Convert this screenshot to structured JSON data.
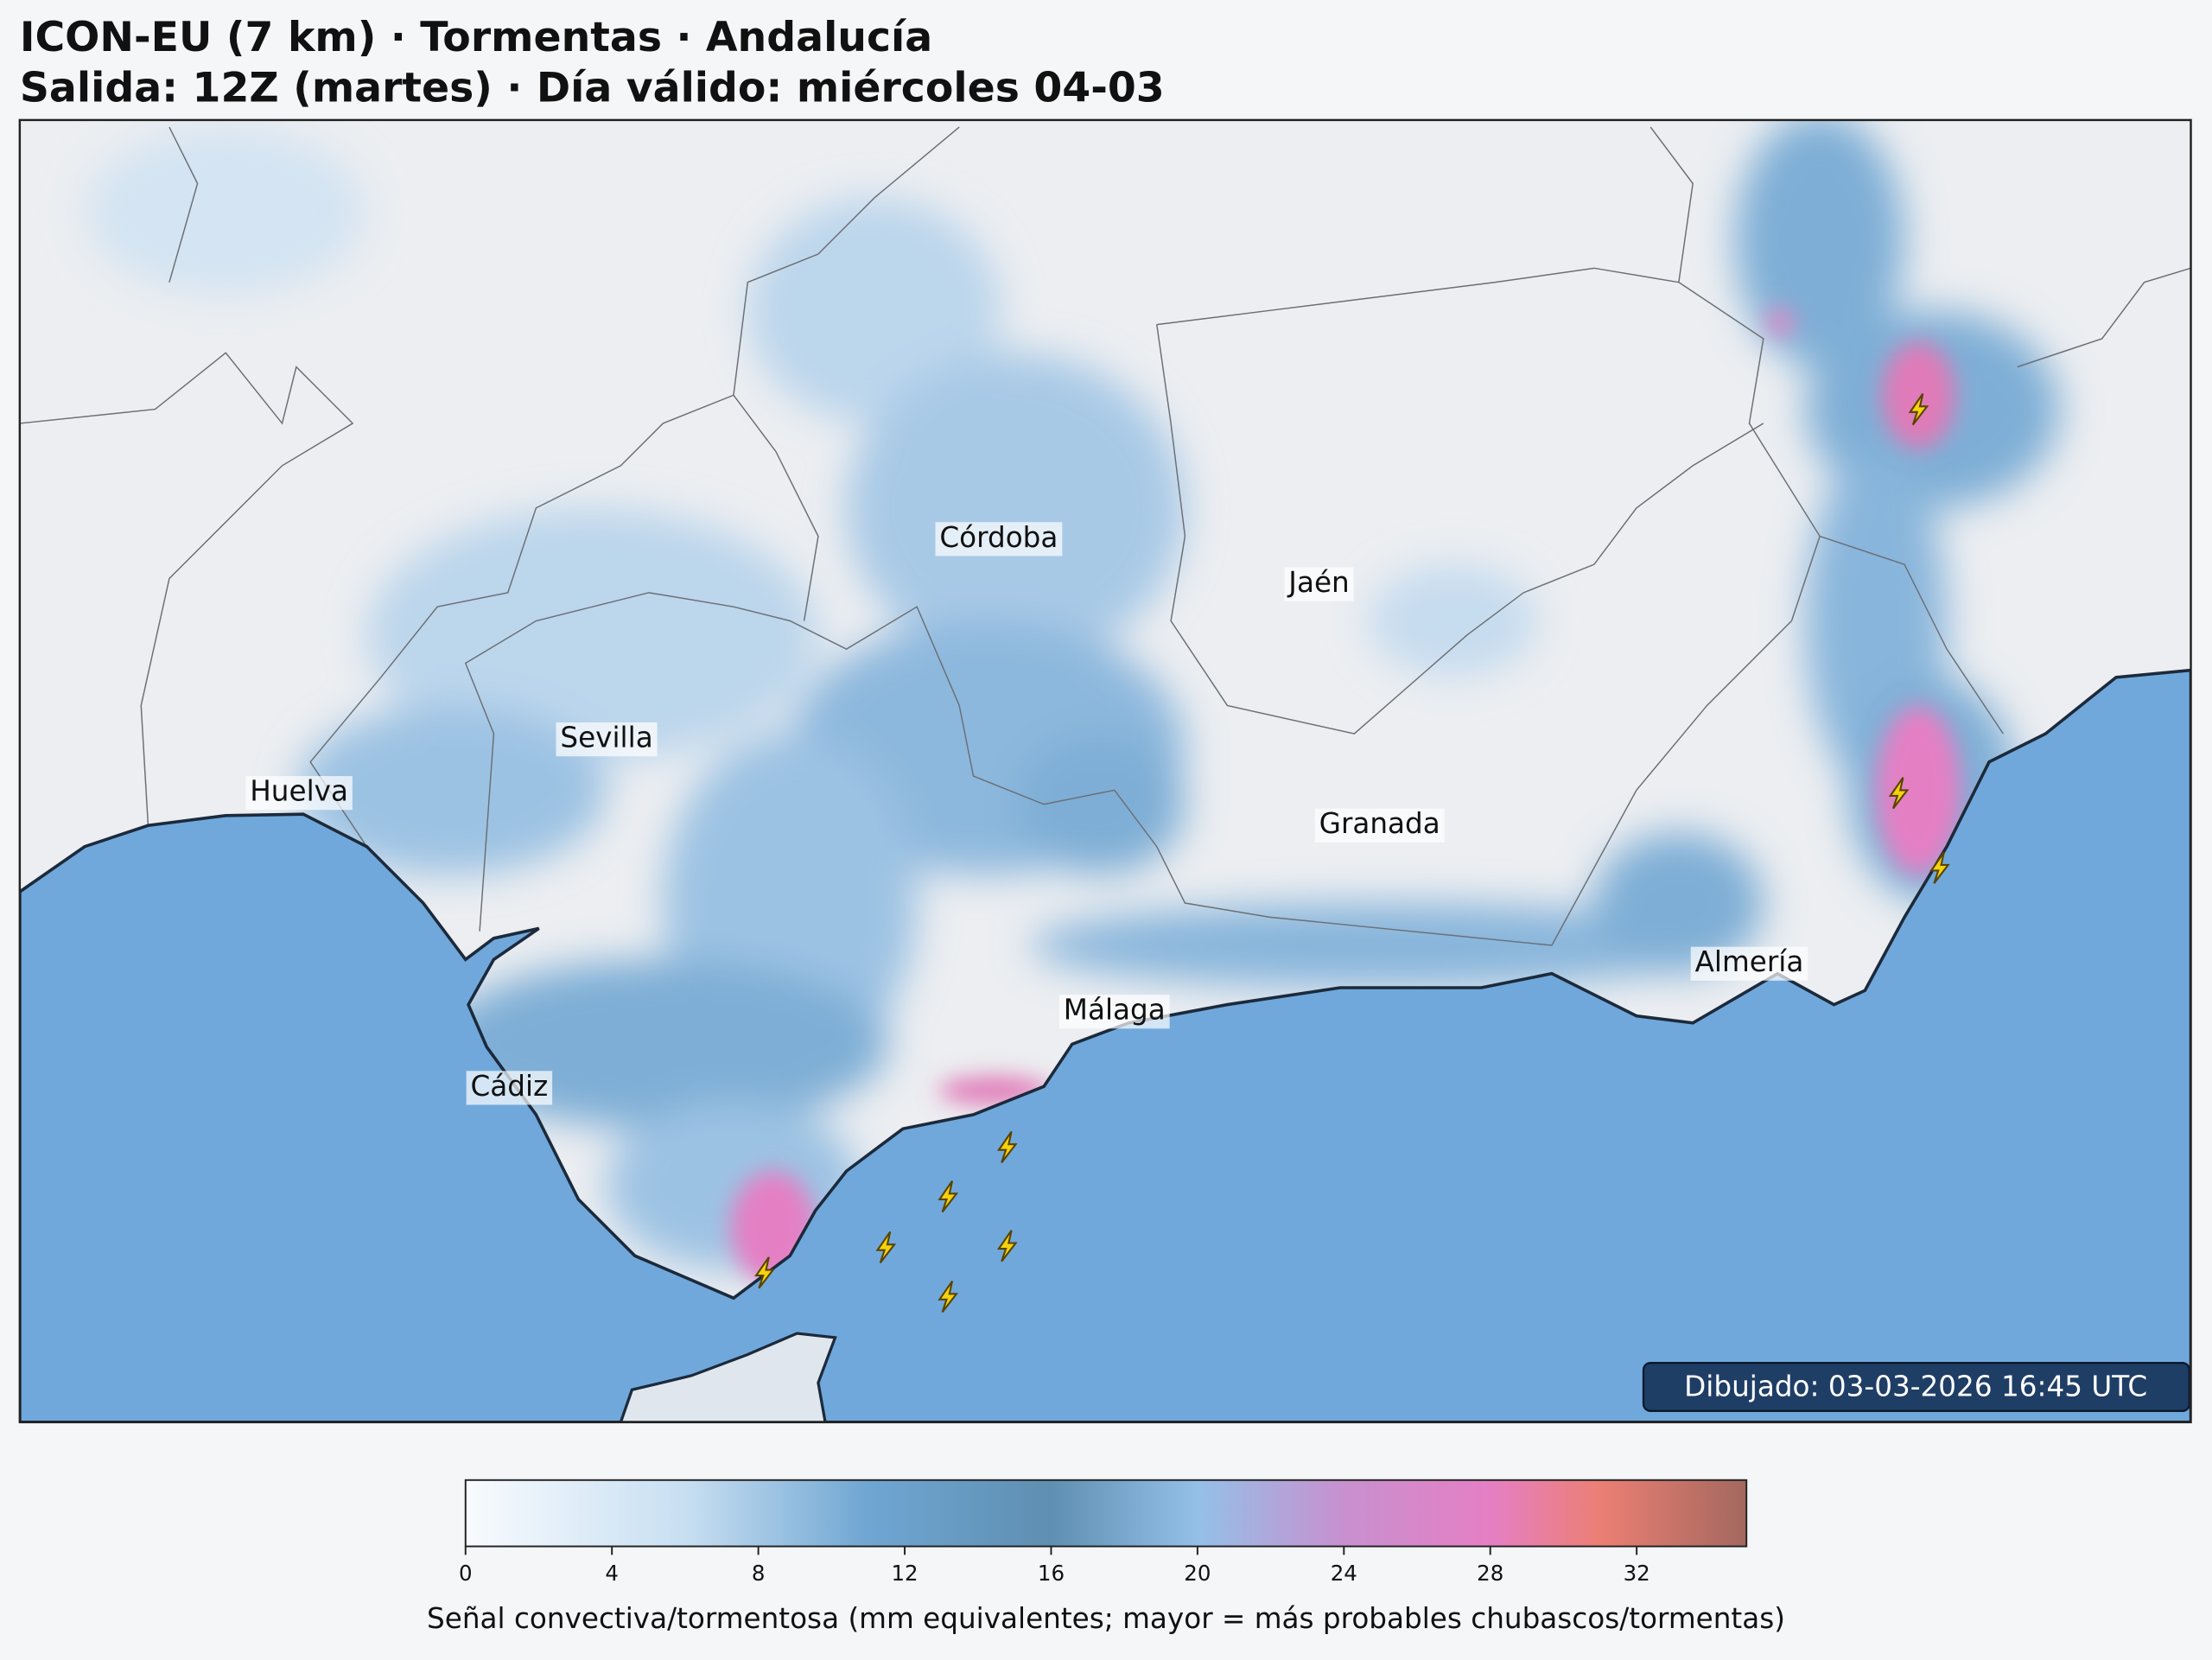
{
  "header": {
    "title_line1": "ICON-EU (7 km) · Tormentas · Andalucía",
    "title_line2": "Salida: 12Z (martes) · Día válido: miércoles 04-03"
  },
  "map": {
    "labels": [
      "Córdoba",
      "Jaén",
      "Sevilla",
      "Huelva",
      "Granada",
      "Almería",
      "Málaga",
      "Cádiz"
    ],
    "timestamp": "Dibujado: 03-03-2026 16:45 UTC"
  },
  "colorbar": {
    "label": "Señal convectiva/tormentosa (mm equivalentes; mayor = más probables chubascos/tormentas)",
    "range": [
      0,
      35
    ],
    "ticks": [
      0,
      4,
      8,
      12,
      16,
      20,
      24,
      28,
      32
    ],
    "color_stops": [
      {
        "value": 0,
        "color": "#f8fbfe"
      },
      {
        "value": 6,
        "color": "#c8dff2"
      },
      {
        "value": 11,
        "color": "#6fa6d2"
      },
      {
        "value": 16,
        "color": "#5f8fb2"
      },
      {
        "value": 20,
        "color": "#94c0e8"
      },
      {
        "value": 24,
        "color": "#c890cf"
      },
      {
        "value": 28,
        "color": "#e57fc4"
      },
      {
        "value": 31,
        "color": "#ec7f74"
      },
      {
        "value": 35,
        "color": "#a3685e"
      }
    ]
  }
}
